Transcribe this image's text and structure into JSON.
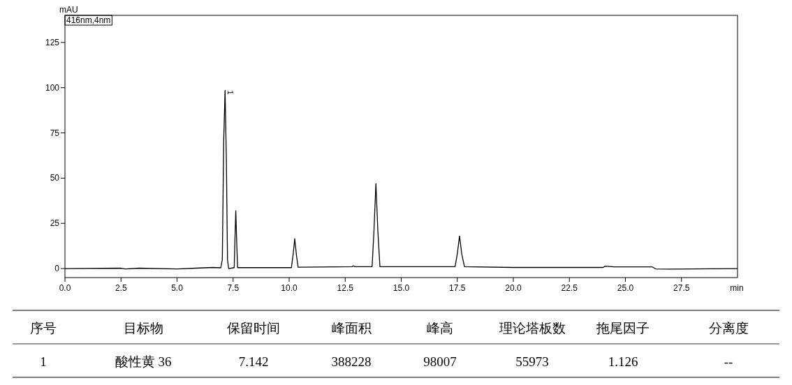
{
  "chart_data": [
    {
      "type": "line",
      "xlabel": "min",
      "ylabel": "mAU",
      "grid": false,
      "marker": "none",
      "line_style": "solid",
      "xlim": [
        0,
        30
      ],
      "ylim": [
        -5,
        140
      ],
      "xticks": [
        {
          "value": 0,
          "label": "0.0"
        },
        {
          "value": 2.5,
          "label": "2.5"
        },
        {
          "value": 5,
          "label": "5.0"
        },
        {
          "value": 7.5,
          "label": "7.5"
        },
        {
          "value": 10,
          "label": "10.0"
        },
        {
          "value": 12.5,
          "label": "12.5"
        },
        {
          "value": 15,
          "label": "15.0"
        },
        {
          "value": 17.5,
          "label": "17.5"
        },
        {
          "value": 20,
          "label": "20.0"
        },
        {
          "value": 22.5,
          "label": "22.5"
        },
        {
          "value": 25,
          "label": "25.0"
        },
        {
          "value": 27.5,
          "label": "27.5"
        }
      ],
      "yticks": [
        0,
        25,
        50,
        75,
        100,
        125
      ],
      "annotations": [
        "416nm,4nm",
        {
          "text": "1",
          "x": 7.142,
          "y": 98.5
        }
      ],
      "series": [
        {
          "color": "#000000",
          "x": [
            0,
            2.5,
            2.7,
            3.3,
            5,
            6,
            6.6,
            6.95,
            7.02,
            7.08,
            7.142,
            7.2,
            7.25,
            7.3,
            7.55,
            7.58,
            7.62,
            7.66,
            7.7,
            8,
            10.1,
            10.18,
            10.25,
            10.32,
            10.4,
            12.8,
            12.85,
            12.95,
            13.7,
            13.78,
            13.87,
            13.96,
            14.05,
            17.4,
            17.5,
            17.6,
            17.7,
            17.82,
            20,
            24.0,
            24.1,
            24.5,
            25.5,
            26.2,
            26.35,
            27,
            30
          ],
          "values": [
            0,
            0.2,
            -0.2,
            0.2,
            -0.2,
            0.3,
            0.6,
            0.4,
            5,
            70,
            98.5,
            60,
            5,
            0,
            0.5,
            15,
            32,
            15,
            0.5,
            0.5,
            0.5,
            8,
            16.5,
            8,
            0.7,
            1,
            1.5,
            1,
            1,
            20,
            47,
            20,
            1,
            1,
            8,
            18,
            8,
            1,
            0.6,
            0.6,
            1.3,
            0.9,
            0.9,
            0.9,
            -0.2,
            -0.3,
            0
          ]
        }
      ]
    },
    {
      "type": "other",
      "categories": [
        "序号",
        "目标物",
        "保留时间",
        "峰面积",
        "峰高",
        "理论塔板数",
        "拖尾因子",
        "分离度"
      ],
      "annotations": [
        "1",
        "酸性黄 36",
        "7.142",
        "388228",
        "98007",
        "55973",
        "1.126",
        "--"
      ]
    }
  ]
}
